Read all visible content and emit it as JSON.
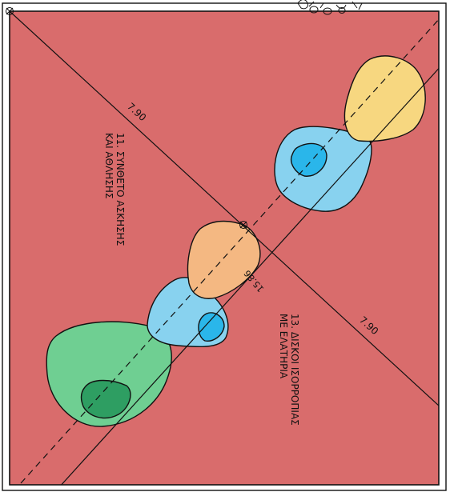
{
  "colors": {
    "field": "#d96c6c",
    "line": "#111111",
    "zone_yellow": "#f7d780",
    "zone_orange": "#f4b882",
    "zone_light_blue": "#88d2ef",
    "zone_blue": "#2ab6ea",
    "zone_green": "#6fcf92",
    "zone_dark_green": "#2e9e62"
  },
  "labels": {
    "dim_diag_upper": "7.90",
    "dim_diag_lower": "7.90",
    "dim_center": "15.86",
    "equip_11_line1": "11. ΣΥΝΘΕΤΟ ΑΣΚΗΣΗΣ",
    "equip_11_line2": "ΚΑΙ ΑΘΛΗΣΗΣ",
    "equip_13_line1": "13. ΔΙΣΚΟΙ ΙΣΟΡΡΟΠΙΑΣ",
    "equip_13_line2": "ΜΕ ΕΛΑΤΗΡΙΑ"
  },
  "icons": {
    "plant": "plant-symbol-icon",
    "marker": "circle-cross-marker-icon"
  }
}
